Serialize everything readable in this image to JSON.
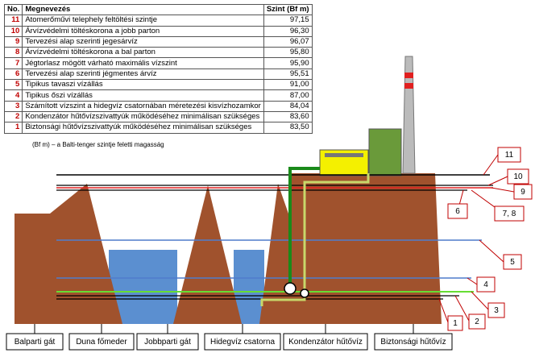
{
  "table": {
    "header": [
      "No.",
      "Megnevezés",
      "Szint (Bf m)"
    ],
    "rows": [
      [
        "11",
        "Atomerőművi telephely feltöltési szintje",
        "97,15"
      ],
      [
        "10",
        "Árvízvédelmi töltéskorona a jobb parton",
        "96,30"
      ],
      [
        "9",
        "Tervezési alap szerinti jegesárvíz",
        "96,07"
      ],
      [
        "8",
        "Árvízvédelmi töltéskorona a bal parton",
        "95,80"
      ],
      [
        "7",
        "Jégtorlasz mögött várható maximális vízszint",
        "95,90"
      ],
      [
        "6",
        "Tervezési alap szerinti jégmentes árvíz",
        "95,51"
      ],
      [
        "5",
        "Tipikus tavaszi vízállás",
        "91,00"
      ],
      [
        "4",
        "Tipikus őszi vízállás",
        "87,00"
      ],
      [
        "3",
        "Számított vízszint a hidegvíz csatornában méretezési kisvízhozamkor",
        "84,04"
      ],
      [
        "2",
        "Kondenzátor hűtővízszivattyúk működéséhez minimálisan szükséges",
        "83,60"
      ],
      [
        "1",
        "Biztonsági hűtővízszivattyúk működéséhez minimálisan szükséges",
        "83,50"
      ]
    ],
    "note": "(Bf m) – a Balti-tenger szintje feletti magasság"
  },
  "diagram": {
    "callouts": [
      "11",
      "10",
      "9",
      "6",
      "7, 8",
      "5",
      "4",
      "3",
      "2",
      "1"
    ],
    "labels": [
      "Balparti gát",
      "Duna főmeder",
      "Jobbparti gát",
      "Hidegvíz csatorna",
      "Kondenzátor hűtővíz",
      "Biztonsági hűtővíz"
    ]
  }
}
